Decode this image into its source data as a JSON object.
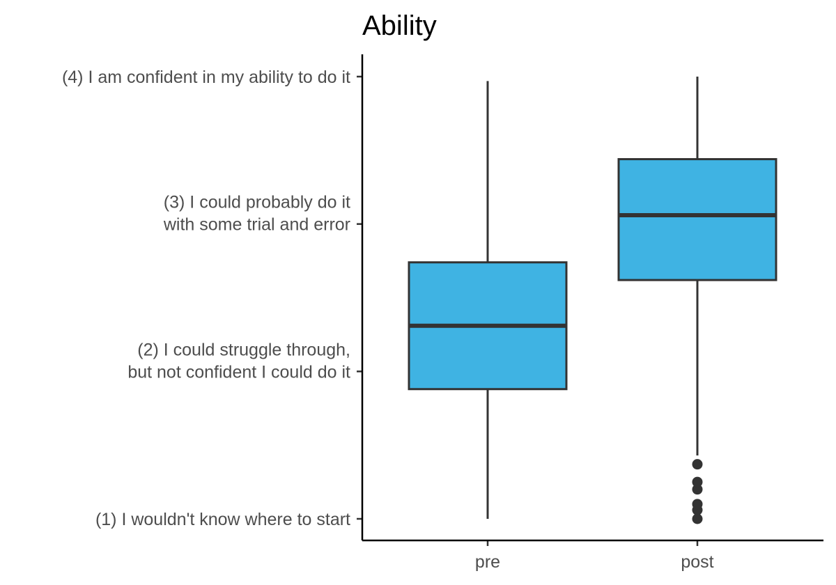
{
  "chart_data": {
    "type": "boxplot",
    "title": "Ability",
    "xlabel": "",
    "ylabel": "",
    "categories": [
      "pre",
      "post"
    ],
    "y_ticks": [
      {
        "value": 1,
        "lines": [
          "(1) I wouldn't know where to start"
        ]
      },
      {
        "value": 2,
        "lines": [
          "(2) I could struggle through,",
          "but not confident I could do it"
        ]
      },
      {
        "value": 3,
        "lines": [
          "(3) I could probably do it",
          "with some trial and error"
        ]
      },
      {
        "value": 4,
        "lines": [
          "(4) I am confident in my ability to do it"
        ]
      }
    ],
    "ylim": [
      0.85,
      4.15
    ],
    "grid": false,
    "legend": "none",
    "box_fill": "#3fb3e3",
    "line_color": "#333333",
    "boxes": [
      {
        "category": "pre",
        "whisker_low": 1.0,
        "q1": 1.88,
        "median": 2.31,
        "q3": 2.74,
        "whisker_high": 3.97,
        "outliers": []
      },
      {
        "category": "post",
        "whisker_low": 1.43,
        "q1": 2.62,
        "median": 3.06,
        "q3": 3.44,
        "whisker_high": 4.0,
        "outliers": [
          1.0,
          1.06,
          1.1,
          1.2,
          1.25,
          1.37
        ]
      }
    ]
  }
}
